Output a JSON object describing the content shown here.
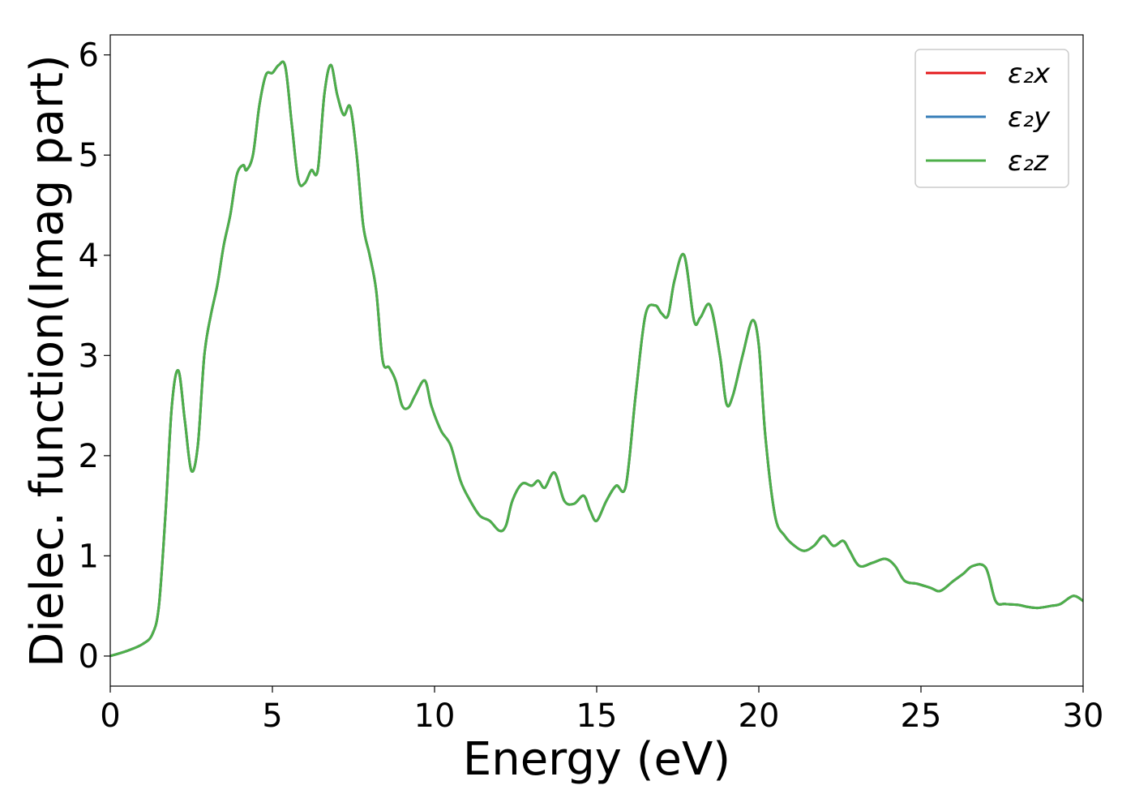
{
  "chart_data": {
    "type": "line",
    "xlabel": "Energy (eV)",
    "ylabel": "Dielec. function(Imag part)",
    "xlim": [
      0,
      30
    ],
    "ylim": [
      -0.3,
      6.2
    ],
    "xticks": [
      0,
      5,
      10,
      15,
      20,
      25,
      30
    ],
    "yticks": [
      0,
      1,
      2,
      3,
      4,
      5,
      6
    ],
    "xtick_labels": [
      "0",
      "5",
      "10",
      "15",
      "20",
      "25",
      "30"
    ],
    "ytick_labels": [
      "0",
      "1",
      "2",
      "3",
      "4",
      "5",
      "6"
    ],
    "grid": false,
    "legend_position": "top-right",
    "x": [
      0,
      0.5,
      1.0,
      1.3,
      1.5,
      1.7,
      1.9,
      2.1,
      2.3,
      2.5,
      2.7,
      2.9,
      3.1,
      3.3,
      3.5,
      3.7,
      3.9,
      4.1,
      4.2,
      4.4,
      4.6,
      4.8,
      5.0,
      5.2,
      5.4,
      5.6,
      5.8,
      6.0,
      6.2,
      6.4,
      6.6,
      6.8,
      7.0,
      7.2,
      7.4,
      7.6,
      7.8,
      8.0,
      8.2,
      8.4,
      8.6,
      8.8,
      9.0,
      9.2,
      9.4,
      9.7,
      9.9,
      10.2,
      10.5,
      10.8,
      11.1,
      11.4,
      11.7,
      12.0,
      12.2,
      12.4,
      12.7,
      13.0,
      13.2,
      13.4,
      13.7,
      14.0,
      14.3,
      14.6,
      14.8,
      15.0,
      15.3,
      15.6,
      15.9,
      16.2,
      16.5,
      16.8,
      17.0,
      17.2,
      17.4,
      17.7,
      18.0,
      18.2,
      18.5,
      18.8,
      19.0,
      19.2,
      19.5,
      19.8,
      20.0,
      20.2,
      20.5,
      20.8,
      21.1,
      21.4,
      21.7,
      22.0,
      22.3,
      22.6,
      22.8,
      23.1,
      23.5,
      23.9,
      24.2,
      24.5,
      24.9,
      25.3,
      25.6,
      26.0,
      26.3,
      26.6,
      27.0,
      27.3,
      27.6,
      28.0,
      28.3,
      28.6,
      29.0,
      29.3,
      29.7,
      30.0
    ],
    "series": [
      {
        "name": "ε₂x",
        "color": "#e41a1c",
        "values": [
          0.0,
          0.05,
          0.12,
          0.22,
          0.5,
          1.4,
          2.5,
          2.85,
          2.35,
          1.85,
          2.1,
          3.0,
          3.4,
          3.7,
          4.1,
          4.4,
          4.8,
          4.9,
          4.85,
          5.0,
          5.5,
          5.8,
          5.82,
          5.9,
          5.88,
          5.3,
          4.75,
          4.72,
          4.85,
          4.85,
          5.6,
          5.9,
          5.6,
          5.4,
          5.48,
          5.0,
          4.3,
          4.0,
          3.65,
          2.95,
          2.88,
          2.75,
          2.5,
          2.48,
          2.6,
          2.75,
          2.5,
          2.25,
          2.1,
          1.75,
          1.55,
          1.4,
          1.35,
          1.25,
          1.3,
          1.55,
          1.72,
          1.7,
          1.75,
          1.68,
          1.83,
          1.55,
          1.52,
          1.6,
          1.45,
          1.35,
          1.55,
          1.7,
          1.7,
          2.6,
          3.4,
          3.5,
          3.42,
          3.4,
          3.75,
          4.0,
          3.35,
          3.38,
          3.5,
          3.0,
          2.52,
          2.6,
          3.0,
          3.35,
          3.1,
          2.2,
          1.4,
          1.2,
          1.1,
          1.05,
          1.1,
          1.2,
          1.1,
          1.15,
          1.05,
          0.9,
          0.93,
          0.97,
          0.9,
          0.75,
          0.72,
          0.68,
          0.65,
          0.75,
          0.82,
          0.9,
          0.88,
          0.55,
          0.52,
          0.51,
          0.49,
          0.48,
          0.5,
          0.52,
          0.6,
          0.55
        ]
      },
      {
        "name": "ε₂y",
        "color": "#377eb8",
        "values": [
          0.0,
          0.05,
          0.12,
          0.22,
          0.5,
          1.4,
          2.5,
          2.85,
          2.35,
          1.85,
          2.1,
          3.0,
          3.4,
          3.7,
          4.1,
          4.4,
          4.8,
          4.9,
          4.85,
          5.0,
          5.5,
          5.8,
          5.82,
          5.9,
          5.88,
          5.3,
          4.75,
          4.72,
          4.85,
          4.85,
          5.6,
          5.9,
          5.6,
          5.4,
          5.48,
          5.0,
          4.3,
          4.0,
          3.65,
          2.95,
          2.88,
          2.75,
          2.5,
          2.48,
          2.6,
          2.75,
          2.5,
          2.25,
          2.1,
          1.75,
          1.55,
          1.4,
          1.35,
          1.25,
          1.3,
          1.55,
          1.72,
          1.7,
          1.75,
          1.68,
          1.83,
          1.55,
          1.52,
          1.6,
          1.45,
          1.35,
          1.55,
          1.7,
          1.7,
          2.6,
          3.4,
          3.5,
          3.42,
          3.4,
          3.75,
          4.0,
          3.35,
          3.38,
          3.5,
          3.0,
          2.52,
          2.6,
          3.0,
          3.35,
          3.1,
          2.2,
          1.4,
          1.2,
          1.1,
          1.05,
          1.1,
          1.2,
          1.1,
          1.15,
          1.05,
          0.9,
          0.93,
          0.97,
          0.9,
          0.75,
          0.72,
          0.68,
          0.65,
          0.75,
          0.82,
          0.9,
          0.88,
          0.55,
          0.52,
          0.51,
          0.49,
          0.48,
          0.5,
          0.52,
          0.6,
          0.55
        ]
      },
      {
        "name": "ε₂z",
        "color": "#4daf4a",
        "values": [
          0.0,
          0.05,
          0.12,
          0.22,
          0.5,
          1.4,
          2.5,
          2.85,
          2.35,
          1.85,
          2.1,
          3.0,
          3.4,
          3.7,
          4.1,
          4.4,
          4.8,
          4.9,
          4.85,
          5.0,
          5.5,
          5.8,
          5.82,
          5.9,
          5.88,
          5.3,
          4.75,
          4.72,
          4.85,
          4.85,
          5.6,
          5.9,
          5.6,
          5.4,
          5.48,
          5.0,
          4.3,
          4.0,
          3.65,
          2.95,
          2.88,
          2.75,
          2.5,
          2.48,
          2.6,
          2.75,
          2.5,
          2.25,
          2.1,
          1.75,
          1.55,
          1.4,
          1.35,
          1.25,
          1.3,
          1.55,
          1.72,
          1.7,
          1.75,
          1.68,
          1.83,
          1.55,
          1.52,
          1.6,
          1.45,
          1.35,
          1.55,
          1.7,
          1.7,
          2.6,
          3.4,
          3.5,
          3.42,
          3.4,
          3.75,
          4.0,
          3.35,
          3.38,
          3.5,
          3.0,
          2.52,
          2.6,
          3.0,
          3.35,
          3.1,
          2.2,
          1.4,
          1.2,
          1.1,
          1.05,
          1.1,
          1.2,
          1.1,
          1.15,
          1.05,
          0.9,
          0.93,
          0.97,
          0.9,
          0.75,
          0.72,
          0.68,
          0.65,
          0.75,
          0.82,
          0.9,
          0.88,
          0.55,
          0.52,
          0.51,
          0.49,
          0.48,
          0.5,
          0.52,
          0.6,
          0.55
        ]
      }
    ]
  }
}
